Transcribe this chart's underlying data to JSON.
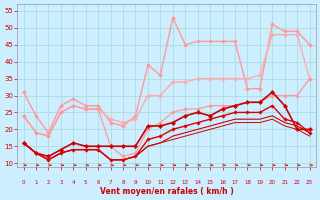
{
  "bg_color": "#cceeff",
  "grid_color": "#aadddd",
  "xlabel": "Vent moyen/en rafales ( km/h )",
  "xlabel_color": "#cc0000",
  "tick_color": "#cc0000",
  "xlim": [
    -0.5,
    23.5
  ],
  "ylim": [
    9,
    57
  ],
  "yticks": [
    10,
    15,
    20,
    25,
    30,
    35,
    40,
    45,
    50,
    55
  ],
  "xticks": [
    0,
    1,
    2,
    3,
    4,
    5,
    6,
    7,
    8,
    9,
    10,
    11,
    12,
    13,
    14,
    15,
    16,
    17,
    18,
    19,
    20,
    21,
    22,
    23
  ],
  "series": [
    {
      "x": [
        0,
        1,
        2,
        3,
        4,
        5,
        6,
        7,
        8,
        9,
        10,
        11,
        12,
        13,
        14,
        15,
        16,
        17,
        18,
        19,
        20,
        21,
        22,
        23
      ],
      "y": [
        31,
        24,
        19,
        27,
        29,
        27,
        27,
        22,
        21,
        24,
        39,
        36,
        53,
        45,
        46,
        46,
        46,
        46,
        32,
        32,
        51,
        49,
        49,
        45
      ],
      "color": "#ff9999",
      "lw": 1.0,
      "marker": "D",
      "ms": 2.0
    },
    {
      "x": [
        0,
        1,
        2,
        3,
        4,
        5,
        6,
        7,
        8,
        9,
        10,
        11,
        12,
        13,
        14,
        15,
        16,
        17,
        18,
        19,
        20,
        21,
        22,
        23
      ],
      "y": [
        24,
        19,
        18,
        25,
        27,
        26,
        26,
        23,
        22,
        23,
        30,
        30,
        34,
        34,
        35,
        35,
        35,
        35,
        35,
        36,
        48,
        48,
        48,
        35
      ],
      "color": "#ffaaaa",
      "lw": 1.0,
      "marker": "D",
      "ms": 2.0
    },
    {
      "x": [
        0,
        1,
        2,
        3,
        4,
        5,
        6,
        7,
        8,
        9,
        10,
        11,
        12,
        13,
        14,
        15,
        16,
        17,
        18,
        19,
        20,
        21,
        22,
        23
      ],
      "y": [
        24,
        19,
        18,
        25,
        27,
        26,
        26,
        15,
        12,
        13,
        20,
        22,
        25,
        26,
        26,
        27,
        27,
        27,
        28,
        28,
        30,
        30,
        30,
        35
      ],
      "color": "#ff9999",
      "lw": 0.9,
      "marker": "D",
      "ms": 1.8
    },
    {
      "x": [
        0,
        1,
        2,
        3,
        4,
        5,
        6,
        7,
        8,
        9,
        10,
        11,
        12,
        13,
        14,
        15,
        16,
        17,
        18,
        19,
        20,
        21,
        22,
        23
      ],
      "y": [
        16,
        13,
        12,
        14,
        16,
        15,
        15,
        15,
        15,
        15,
        21,
        21,
        22,
        24,
        25,
        24,
        26,
        27,
        28,
        28,
        31,
        27,
        20,
        20
      ],
      "color": "#cc0000",
      "lw": 1.2,
      "marker": "D",
      "ms": 2.2
    },
    {
      "x": [
        0,
        1,
        2,
        3,
        4,
        5,
        6,
        7,
        8,
        9,
        10,
        11,
        12,
        13,
        14,
        15,
        16,
        17,
        18,
        19,
        20,
        21,
        22,
        23
      ],
      "y": [
        16,
        13,
        11,
        13,
        14,
        14,
        14,
        11,
        11,
        12,
        17,
        18,
        20,
        21,
        22,
        23,
        24,
        25,
        25,
        25,
        27,
        23,
        22,
        19
      ],
      "color": "#dd0000",
      "lw": 1.0,
      "marker": "D",
      "ms": 1.8
    },
    {
      "x": [
        0,
        1,
        2,
        3,
        4,
        5,
        6,
        7,
        8,
        9,
        10,
        11,
        12,
        13,
        14,
        15,
        16,
        17,
        18,
        19,
        20,
        21,
        22,
        23
      ],
      "y": [
        16,
        13,
        11,
        13,
        14,
        14,
        14,
        11,
        11,
        12,
        15,
        16,
        18,
        19,
        20,
        21,
        22,
        23,
        23,
        23,
        24,
        22,
        21,
        19
      ],
      "color": "#cc0000",
      "lw": 0.8,
      "marker": null,
      "ms": 0
    },
    {
      "x": [
        0,
        1,
        2,
        3,
        4,
        5,
        6,
        7,
        8,
        9,
        10,
        11,
        12,
        13,
        14,
        15,
        16,
        17,
        18,
        19,
        20,
        21,
        22,
        23
      ],
      "y": [
        16,
        13,
        11,
        13,
        14,
        14,
        14,
        11,
        11,
        12,
        15,
        16,
        17,
        18,
        19,
        20,
        21,
        22,
        22,
        22,
        23,
        21,
        20,
        18
      ],
      "color": "#cc0000",
      "lw": 0.7,
      "marker": null,
      "ms": 0
    }
  ]
}
